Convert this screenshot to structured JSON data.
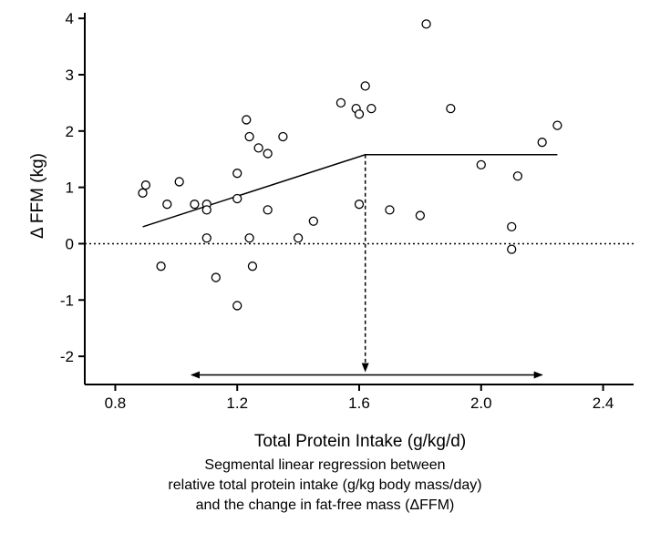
{
  "chart_data": {
    "type": "scatter",
    "xlabel": "Total Protein Intake (g/kg/d)",
    "ylabel": "Δ FFM (kg)",
    "xlim": [
      0.7,
      2.5
    ],
    "ylim": [
      -2.5,
      4.1
    ],
    "xticks": [
      "0.8",
      "1.2",
      "1.6",
      "2.0",
      "2.4"
    ],
    "xtick_values": [
      0.8,
      1.2,
      1.6,
      2.0,
      2.4
    ],
    "yticks": [
      "4",
      "3",
      "2",
      "1",
      "0",
      "-1",
      "-2"
    ],
    "ytick_values": [
      4,
      3,
      2,
      1,
      0,
      -1,
      -2
    ],
    "grid": false,
    "points": [
      {
        "x": 0.89,
        "y": 0.9
      },
      {
        "x": 0.9,
        "y": 1.04
      },
      {
        "x": 0.95,
        "y": -0.4
      },
      {
        "x": 0.97,
        "y": 0.7
      },
      {
        "x": 1.01,
        "y": 1.1
      },
      {
        "x": 1.06,
        "y": 0.7
      },
      {
        "x": 1.1,
        "y": 0.7
      },
      {
        "x": 1.1,
        "y": 0.6
      },
      {
        "x": 1.1,
        "y": 0.1
      },
      {
        "x": 1.13,
        "y": -0.6
      },
      {
        "x": 1.2,
        "y": 1.25
      },
      {
        "x": 1.2,
        "y": 0.8
      },
      {
        "x": 1.2,
        "y": -1.1
      },
      {
        "x": 1.23,
        "y": 2.2
      },
      {
        "x": 1.24,
        "y": 1.9
      },
      {
        "x": 1.24,
        "y": 0.1
      },
      {
        "x": 1.25,
        "y": -0.4
      },
      {
        "x": 1.27,
        "y": 1.7
      },
      {
        "x": 1.3,
        "y": 1.6
      },
      {
        "x": 1.3,
        "y": 0.6
      },
      {
        "x": 1.35,
        "y": 1.9
      },
      {
        "x": 1.4,
        "y": 0.1
      },
      {
        "x": 1.45,
        "y": 0.4
      },
      {
        "x": 1.54,
        "y": 2.5
      },
      {
        "x": 1.59,
        "y": 2.4
      },
      {
        "x": 1.6,
        "y": 2.3
      },
      {
        "x": 1.6,
        "y": 0.7
      },
      {
        "x": 1.62,
        "y": 2.8
      },
      {
        "x": 1.64,
        "y": 2.4
      },
      {
        "x": 1.7,
        "y": 0.6
      },
      {
        "x": 1.8,
        "y": 0.5
      },
      {
        "x": 1.82,
        "y": 3.9
      },
      {
        "x": 1.9,
        "y": 2.4
      },
      {
        "x": 2.0,
        "y": 1.4
      },
      {
        "x": 2.1,
        "y": 0.3
      },
      {
        "x": 2.1,
        "y": -0.1
      },
      {
        "x": 2.12,
        "y": 1.2
      },
      {
        "x": 2.2,
        "y": 1.8
      },
      {
        "x": 2.25,
        "y": 2.1
      }
    ],
    "regression": [
      {
        "x": 0.89,
        "y": 0.3
      },
      {
        "x": 1.62,
        "y": 1.58
      },
      {
        "x": 2.25,
        "y": 1.58
      }
    ],
    "breakpoint_x": 1.62,
    "zero_line_y": 0,
    "range_arrow": {
      "x_start": 1.05,
      "x_end": 2.2,
      "y": -2.33
    }
  },
  "caption": {
    "line1": "Segmental linear regression between",
    "line2": "relative total protein intake (g/kg body mass/day)",
    "line3": "and the change in fat-free mass (ΔFFM)"
  }
}
